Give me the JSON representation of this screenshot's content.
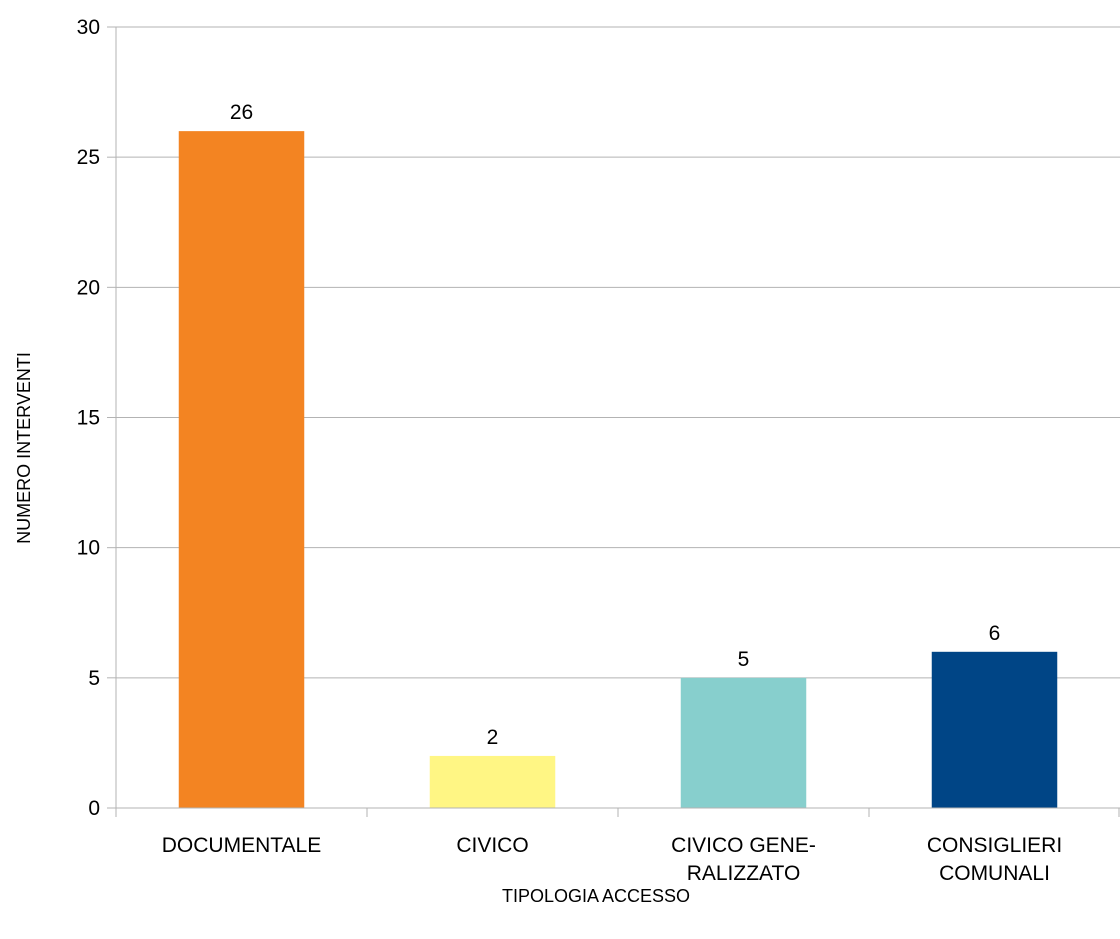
{
  "chart_data": {
    "type": "bar",
    "title": "",
    "xlabel": "TIPOLOGIA ACCESSO",
    "ylabel": "NUMERO INTERVENTI",
    "categories": [
      [
        "DOCUMENTALE"
      ],
      [
        "CIVICO"
      ],
      [
        "CIVICO GENE-",
        "RALIZZATO"
      ],
      [
        "CONSIGLIERI",
        "COMUNALI"
      ]
    ],
    "values": [
      26,
      2,
      5,
      6
    ],
    "data_labels": [
      "26",
      "2",
      "5",
      "6"
    ],
    "bar_colors": [
      "#f38422",
      "#fff684",
      "#87cfcd",
      "#004586"
    ],
    "ylim": [
      0,
      30
    ],
    "yticks": [
      0,
      5,
      10,
      15,
      20,
      25,
      30
    ],
    "grid": true,
    "legend": "none"
  }
}
